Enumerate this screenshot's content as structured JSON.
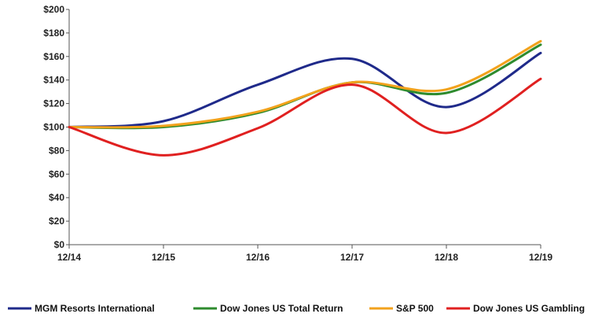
{
  "chart_data": {
    "type": "line",
    "title": "",
    "xlabel": "",
    "ylabel": "",
    "categories": [
      "12/14",
      "12/15",
      "12/16",
      "12/17",
      "12/18",
      "12/19"
    ],
    "y_tick_labels": [
      "$0",
      "$20",
      "$40",
      "$60",
      "$80",
      "$100",
      "$120",
      "$140",
      "$160",
      "$180",
      "$200"
    ],
    "ylim": [
      0,
      200
    ],
    "grid": false,
    "legend_position": "bottom",
    "series": [
      {
        "name": "MGM Resorts International",
        "color": "#1f2a8a",
        "values": [
          100,
          105,
          136,
          158,
          117,
          163
        ]
      },
      {
        "name": "Dow Jones US Total Return",
        "color": "#2e8b2e",
        "values": [
          100,
          100,
          112,
          138,
          129,
          170
        ]
      },
      {
        "name": "S&P 500",
        "color": "#f2a21c",
        "values": [
          100,
          101,
          113,
          138,
          132,
          173
        ]
      },
      {
        "name": "Dow Jones US Gambling",
        "color": "#e02020",
        "values": [
          100,
          76,
          99,
          136,
          95,
          141
        ]
      }
    ]
  }
}
